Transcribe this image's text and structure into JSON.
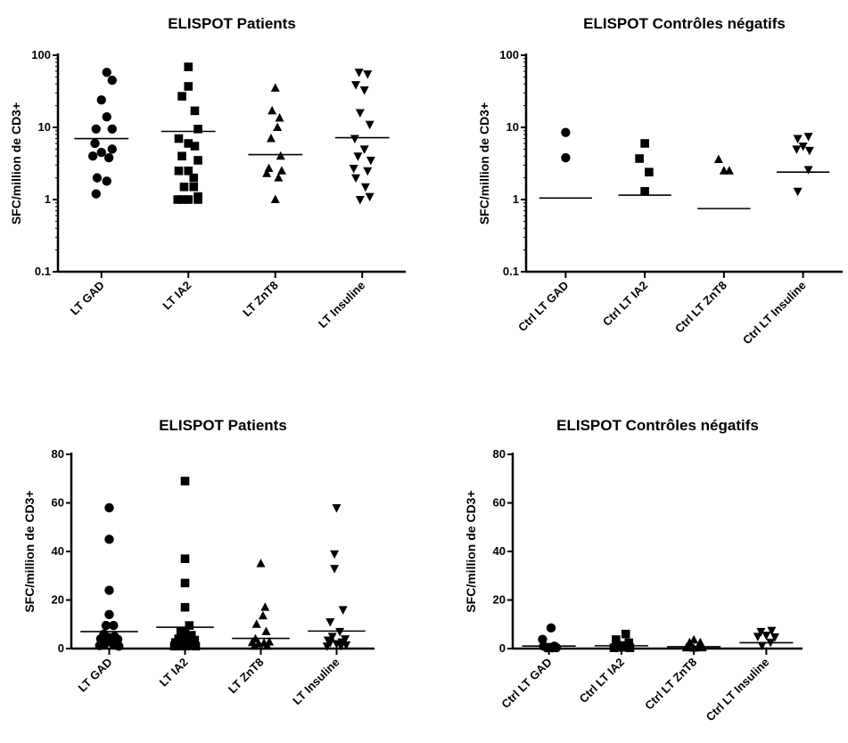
{
  "chart_data": [
    {
      "type": "scatter",
      "title": "ELISPOT Patients",
      "ylabel": "SFC/million de CD3+",
      "yscale": "log",
      "ylim": [
        0.1,
        100
      ],
      "yticks": [
        "0.1",
        "1",
        "10",
        "100"
      ],
      "categories": [
        "LT GAD",
        "LT IA2",
        "LT ZnT8",
        "LT Insuline"
      ],
      "markers": [
        "circle",
        "square",
        "triangle-up",
        "triangle-down"
      ],
      "series": [
        {
          "points": [
            [
              0.5,
              58
            ],
            [
              1,
              45
            ],
            [
              0,
              24
            ],
            [
              0.5,
              14
            ],
            [
              -0.5,
              9.5
            ],
            [
              1,
              9.5
            ],
            [
              -0.6,
              6
            ],
            [
              1,
              5
            ],
            [
              0,
              4.5
            ],
            [
              -0.8,
              4
            ],
            [
              0.7,
              3.8
            ],
            [
              -0.4,
              2
            ],
            [
              0.5,
              1.8
            ],
            [
              -0.5,
              1.2
            ]
          ],
          "mean": 7
        },
        {
          "points": [
            [
              0,
              69
            ],
            [
              0,
              37
            ],
            [
              -0.6,
              27
            ],
            [
              0.6,
              17
            ],
            [
              0.9,
              9.5
            ],
            [
              -0.9,
              7
            ],
            [
              0,
              6
            ],
            [
              0.6,
              5.5
            ],
            [
              -0.6,
              4
            ],
            [
              0.9,
              3.5
            ],
            [
              0,
              2.5
            ],
            [
              -0.9,
              2.5
            ],
            [
              0.5,
              2
            ],
            [
              0.5,
              1.5
            ],
            [
              -0.4,
              1.5
            ],
            [
              -1,
              1
            ],
            [
              0,
              1
            ],
            [
              0.9,
              1
            ],
            [
              -0.5,
              1
            ],
            [
              0.9,
              1.1
            ]
          ],
          "mean": 8.8
        },
        {
          "points": [
            [
              0,
              35
            ],
            [
              -0.3,
              17
            ],
            [
              0.4,
              13.5
            ],
            [
              0.2,
              10
            ],
            [
              -0.4,
              7
            ],
            [
              0.5,
              4
            ],
            [
              -0.6,
              2.7
            ],
            [
              0.6,
              2.5
            ],
            [
              -0.8,
              2.3
            ],
            [
              0.3,
              2
            ],
            [
              0,
              1
            ]
          ],
          "mean": 4.2
        },
        {
          "points": [
            [
              -0.3,
              58
            ],
            [
              0.5,
              55
            ],
            [
              -0.6,
              39
            ],
            [
              0.2,
              33
            ],
            [
              -0.2,
              16
            ],
            [
              0.7,
              11
            ],
            [
              -0.7,
              7
            ],
            [
              0.2,
              5
            ],
            [
              -0.4,
              4
            ],
            [
              0.8,
              3.5
            ],
            [
              -0.8,
              2.7
            ],
            [
              0.5,
              2.5
            ],
            [
              -0.6,
              2
            ],
            [
              0.3,
              1.5
            ],
            [
              -0.2,
              1
            ],
            [
              0.7,
              1.1
            ]
          ],
          "mean": 7.2
        }
      ]
    },
    {
      "type": "scatter",
      "title": "ELISPOT Contrôles négatifs",
      "ylabel": "SFC/million de CD3+",
      "yscale": "log",
      "ylim": [
        0.1,
        100
      ],
      "yticks": [
        "0.1",
        "1",
        "10",
        "100"
      ],
      "categories": [
        "Ctrl LT GAD",
        "Ctrl LT IA2",
        "Ctrl LT ZnT8",
        "Ctrl LT Insuline"
      ],
      "markers": [
        "circle",
        "square",
        "triangle-up",
        "triangle-down"
      ],
      "series": [
        {
          "points": [
            [
              0,
              8.5
            ],
            [
              0,
              3.8
            ]
          ],
          "mean": 1.05
        },
        {
          "points": [
            [
              0,
              6
            ],
            [
              -0.5,
              3.7
            ],
            [
              0.4,
              2.4
            ],
            [
              0,
              1.3
            ]
          ],
          "mean": 1.15
        },
        {
          "points": [
            [
              -0.5,
              3.6
            ],
            [
              0,
              2.5
            ],
            [
              0.5,
              2.5
            ]
          ],
          "mean": 0.75
        },
        {
          "points": [
            [
              0.5,
              7.5
            ],
            [
              -0.5,
              7
            ],
            [
              0,
              5.5
            ],
            [
              -0.6,
              5
            ],
            [
              0.6,
              4.8
            ],
            [
              0.5,
              2.6
            ],
            [
              -0.5,
              1.3
            ]
          ],
          "mean": 2.4
        }
      ]
    },
    {
      "type": "scatter",
      "title": "ELISPOT Patients",
      "ylabel": "SFC/million de CD3+",
      "yscale": "linear",
      "ylim": [
        0,
        80
      ],
      "yticks": [
        "0",
        "20",
        "40",
        "60",
        "80"
      ],
      "categories": [
        "LT GAD",
        "LT IA2",
        "LT ZnT8",
        "LT Insuline"
      ],
      "markers": [
        "circle",
        "square",
        "triangle-up",
        "triangle-down"
      ],
      "series": [
        {
          "points": [
            [
              0,
              58
            ],
            [
              0,
              45
            ],
            [
              0,
              24
            ],
            [
              0,
              14
            ],
            [
              -0.3,
              9.5
            ],
            [
              0.4,
              9.5
            ],
            [
              -0.5,
              6
            ],
            [
              0.5,
              5
            ],
            [
              0,
              4.5
            ],
            [
              -0.8,
              4
            ],
            [
              0.8,
              3.8
            ],
            [
              -0.4,
              2
            ],
            [
              0.4,
              1.8
            ],
            [
              -0.9,
              1.2
            ],
            [
              0.9,
              1
            ]
          ],
          "mean": 7
        },
        {
          "points": [
            [
              0,
              69
            ],
            [
              0,
              37
            ],
            [
              0,
              27
            ],
            [
              0,
              17
            ],
            [
              0.4,
              9.5
            ],
            [
              -0.4,
              7
            ],
            [
              0,
              6
            ],
            [
              0.6,
              5.5
            ],
            [
              -0.6,
              4
            ],
            [
              0.9,
              3.5
            ],
            [
              0,
              2.5
            ],
            [
              -0.9,
              2.5
            ],
            [
              0.5,
              2
            ],
            [
              0.4,
              1.5
            ],
            [
              -0.4,
              1.5
            ],
            [
              -1,
              1
            ],
            [
              0,
              1
            ],
            [
              1,
              1
            ],
            [
              -0.6,
              1
            ],
            [
              0.7,
              1.1
            ]
          ],
          "mean": 8.8
        },
        {
          "points": [
            [
              0,
              35
            ],
            [
              0.4,
              17
            ],
            [
              0.2,
              13.5
            ],
            [
              -0.4,
              10
            ],
            [
              0.5,
              7
            ],
            [
              -0.5,
              4
            ],
            [
              0.8,
              2.7
            ],
            [
              -0.8,
              2.5
            ],
            [
              0.3,
              2.3
            ],
            [
              -0.2,
              2
            ],
            [
              0.6,
              1
            ],
            [
              -0.6,
              1
            ]
          ],
          "mean": 4.2
        },
        {
          "points": [
            [
              0,
              58
            ],
            [
              -0.2,
              39
            ],
            [
              -0.2,
              33
            ],
            [
              0.6,
              16
            ],
            [
              -0.6,
              11
            ],
            [
              0.3,
              7
            ],
            [
              -0.4,
              5
            ],
            [
              0.8,
              4
            ],
            [
              -0.8,
              3.5
            ],
            [
              0.5,
              2.7
            ],
            [
              -0.6,
              2.5
            ],
            [
              0,
              2
            ],
            [
              0.9,
              1.5
            ],
            [
              -0.9,
              1
            ],
            [
              0.4,
              1.1
            ]
          ],
          "mean": 7.2
        }
      ]
    },
    {
      "type": "scatter",
      "title": "ELISPOT Contrôles négatifs",
      "ylabel": "SFC/million de CD3+",
      "yscale": "linear",
      "ylim": [
        0,
        80
      ],
      "yticks": [
        "0",
        "20",
        "40",
        "60",
        "80"
      ],
      "categories": [
        "Ctrl LT GAD",
        "Ctrl LT IA2",
        "Ctrl LT ZnT8",
        "Ctrl LT Insuline"
      ],
      "markers": [
        "circle",
        "square",
        "triangle-up",
        "triangle-down"
      ],
      "series": [
        {
          "points": [
            [
              0.2,
              8.5
            ],
            [
              -0.6,
              3.8
            ],
            [
              -0.5,
              1
            ],
            [
              0.5,
              1
            ],
            [
              0,
              0.5
            ],
            [
              -0.2,
              0.3
            ],
            [
              0.3,
              0.3
            ],
            [
              0.7,
              0.4
            ]
          ],
          "mean": 1.05
        },
        {
          "points": [
            [
              0.4,
              6
            ],
            [
              -0.5,
              3.7
            ],
            [
              0.7,
              2.4
            ],
            [
              0,
              1.3
            ],
            [
              -0.3,
              0.5
            ],
            [
              0.3,
              0.5
            ],
            [
              -0.7,
              0.3
            ],
            [
              0.8,
              0.3
            ]
          ],
          "mean": 1.15
        },
        {
          "points": [
            [
              0,
              3.6
            ],
            [
              0.6,
              2.5
            ],
            [
              -0.4,
              2.5
            ],
            [
              0.4,
              0.4
            ],
            [
              -0.7,
              0.3
            ],
            [
              0.8,
              0.3
            ],
            [
              0,
              0.2
            ]
          ],
          "mean": 0.75
        },
        {
          "points": [
            [
              0.5,
              7.5
            ],
            [
              -0.5,
              7
            ],
            [
              0,
              5.5
            ],
            [
              -0.8,
              5
            ],
            [
              0.8,
              4.8
            ],
            [
              0.4,
              2.6
            ],
            [
              -0.4,
              1.3
            ]
          ],
          "mean": 2.4
        }
      ]
    }
  ]
}
